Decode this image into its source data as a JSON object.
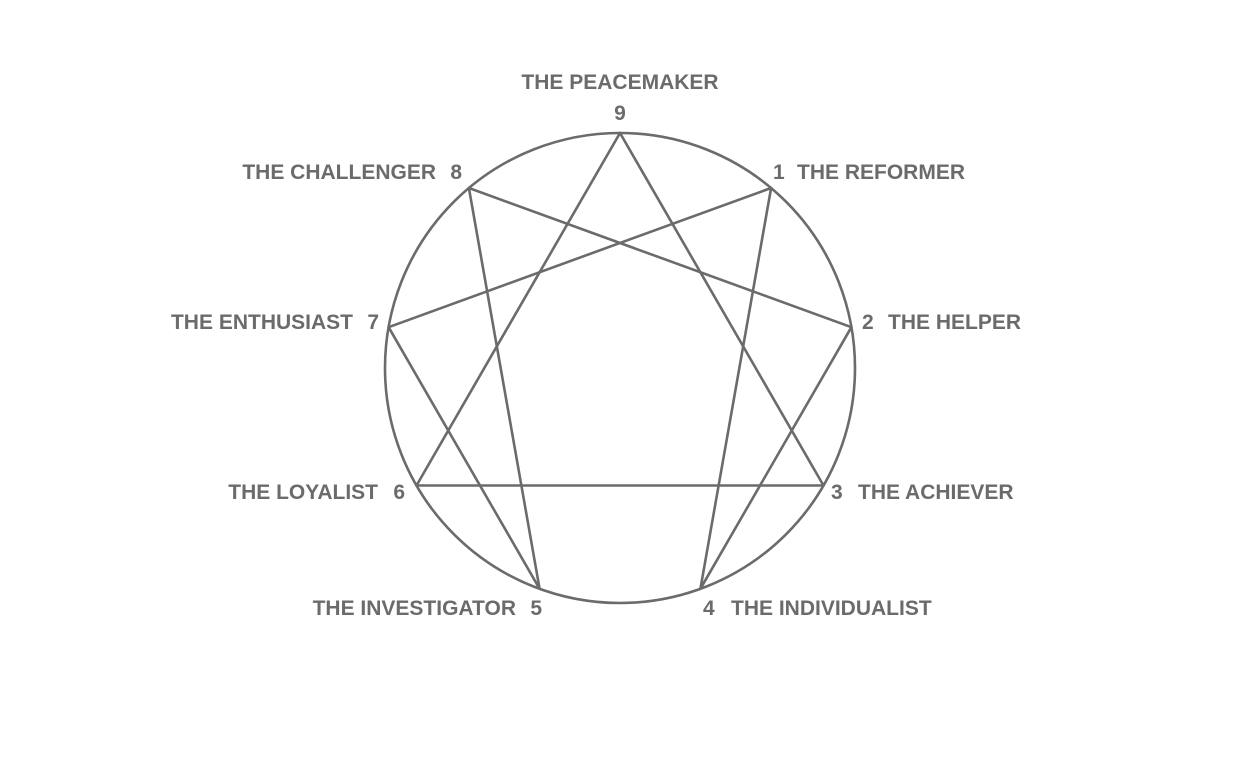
{
  "diagram": {
    "points": [
      {
        "number": "9",
        "name": "THE PEACEMAKER"
      },
      {
        "number": "1",
        "name": "THE REFORMER"
      },
      {
        "number": "2",
        "name": "THE HELPER"
      },
      {
        "number": "3",
        "name": "THE ACHIEVER"
      },
      {
        "number": "4",
        "name": "THE INDIVIDUALIST"
      },
      {
        "number": "5",
        "name": "THE INVESTIGATOR"
      },
      {
        "number": "6",
        "name": "THE LOYALIST"
      },
      {
        "number": "7",
        "name": "THE ENTHUSIAST"
      },
      {
        "number": "8",
        "name": "THE CHALLENGER"
      }
    ],
    "connections": [
      [
        "9",
        "3"
      ],
      [
        "3",
        "6"
      ],
      [
        "6",
        "9"
      ],
      [
        "1",
        "4"
      ],
      [
        "4",
        "2"
      ],
      [
        "2",
        "8"
      ],
      [
        "8",
        "5"
      ],
      [
        "5",
        "7"
      ],
      [
        "7",
        "1"
      ]
    ],
    "line_color": "#6b6b6b",
    "text_color": "#6b6b6b"
  }
}
